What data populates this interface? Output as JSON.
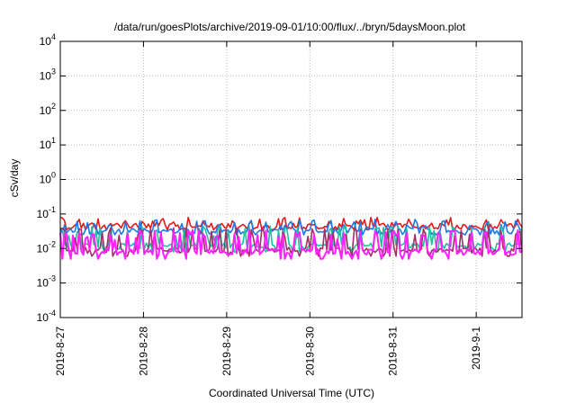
{
  "chart_data": {
    "type": "line",
    "title": "/data/run/goesPlots/archive/2019-09-01/10:00/flux/../bryn/5daysMoon.plot",
    "xlabel": "Coordinated Universal Time (UTC)",
    "ylabel": "cSv/day",
    "y_scale": "log",
    "ylim": [
      0.0001,
      10000
    ],
    "xlim_days": [
      0,
      5.55
    ],
    "grid": true,
    "legend": "none",
    "x_ticks": [
      {
        "day": 0,
        "label": "2019-8-27"
      },
      {
        "day": 1,
        "label": "2019-8-28"
      },
      {
        "day": 2,
        "label": "2019-8-29"
      },
      {
        "day": 3,
        "label": "2019-8-30"
      },
      {
        "day": 4,
        "label": "2019-8-31"
      },
      {
        "day": 5,
        "label": "2019-9-1"
      }
    ],
    "y_ticks": [
      {
        "exp": "-4"
      },
      {
        "exp": "-3"
      },
      {
        "exp": "-2"
      },
      {
        "exp": "-1"
      },
      {
        "exp": "0"
      },
      {
        "exp": "1"
      },
      {
        "exp": "2"
      },
      {
        "exp": "3"
      },
      {
        "exp": "4"
      }
    ],
    "y_tick_base": "10",
    "series_colors": [
      "#e41a1c",
      "#1f77e8",
      "#20c0a0",
      "#a0306a",
      "#ff22ff"
    ],
    "series_params": [
      {
        "base": 0.045,
        "spike": 0.08,
        "trough": 0.035
      },
      {
        "base": 0.032,
        "spike": 0.07,
        "trough": 0.025
      },
      {
        "base": 0.012,
        "spike": 0.045,
        "trough": 0.008
      },
      {
        "base": 0.009,
        "spike": 0.04,
        "trough": 0.006
      },
      {
        "base": 0.008,
        "spike": 0.035,
        "trough": 0.005
      }
    ]
  }
}
